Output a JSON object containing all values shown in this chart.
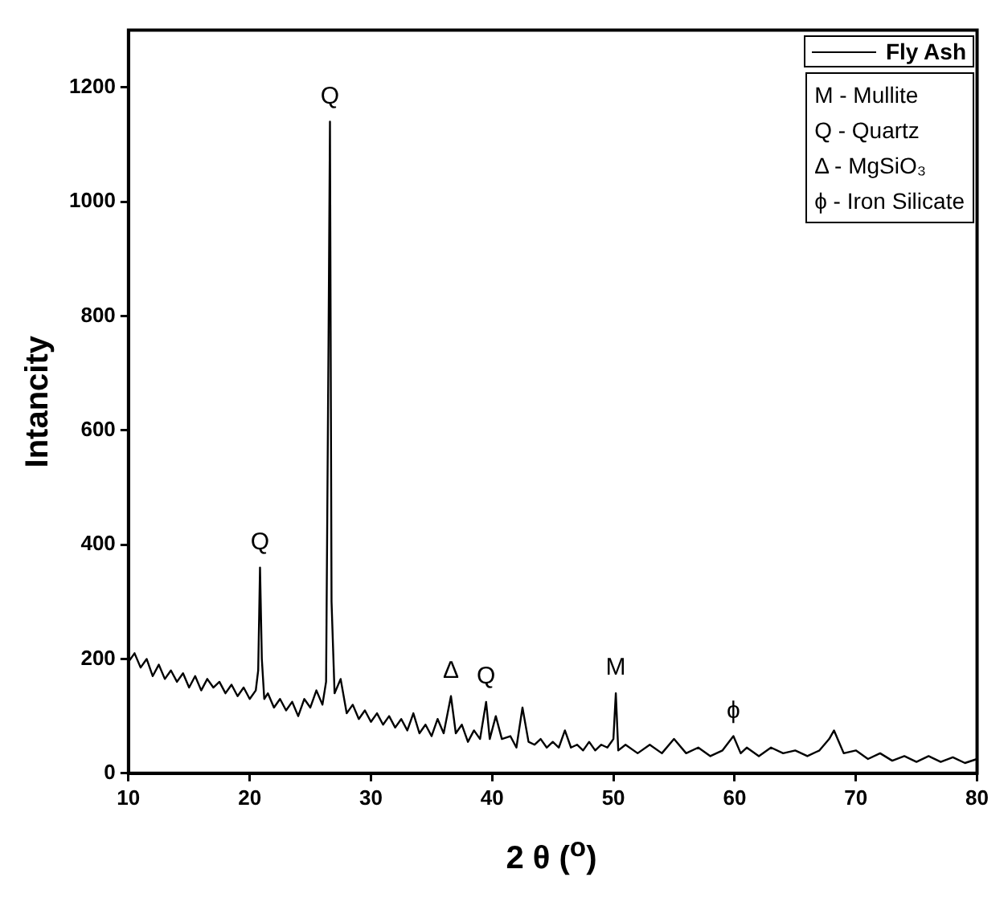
{
  "chart_data": {
    "type": "line",
    "xlabel": "2 θ ($^{o}$)",
    "ylabel": "Intancity",
    "xlim": [
      10,
      80
    ],
    "xticks": [
      10,
      20,
      30,
      40,
      50,
      60,
      70,
      80
    ],
    "ylim": [
      0,
      1300
    ],
    "yticks": [
      0,
      200,
      400,
      600,
      800,
      1000,
      1200
    ],
    "grid": false,
    "legend": "top right",
    "marker": "none",
    "line_style": "solid",
    "annotations": [
      {
        "text": "Q",
        "x": 20.85,
        "y": 360
      },
      {
        "text": "Q",
        "x": 26.62,
        "y": 1140
      },
      {
        "text": "Δ",
        "x": 36.6,
        "y": 135
      },
      {
        "text": "Q",
        "x": 39.5,
        "y": 125
      },
      {
        "text": "M",
        "x": 50.2,
        "y": 140
      },
      {
        "text": "ϕ",
        "x": 59.9,
        "y": 65
      },
      "M - Mullite",
      "Q - Quartz",
      "Δ - MgSiO₃",
      "ϕ - Iron Silicate"
    ],
    "series": [
      {
        "name": "Fly Ash",
        "color": "#000000",
        "x": [
          10,
          10.5,
          11,
          11.5,
          12,
          12.5,
          13,
          13.5,
          14,
          14.5,
          15,
          15.5,
          16,
          16.5,
          17,
          17.5,
          18,
          18.5,
          19,
          19.5,
          20,
          20.5,
          20.7,
          20.85,
          21,
          21.2,
          21.5,
          22,
          22.5,
          23,
          23.5,
          24,
          24.5,
          25,
          25.5,
          26,
          26.3,
          26.5,
          26.62,
          26.75,
          27,
          27.5,
          28,
          28.5,
          29,
          29.5,
          30,
          30.5,
          31,
          31.5,
          32,
          32.5,
          33,
          33.5,
          34,
          34.5,
          35,
          35.5,
          36,
          36.6,
          37,
          37.5,
          38,
          38.5,
          39,
          39.5,
          39.8,
          40.3,
          40.8,
          41.5,
          42,
          42.5,
          43,
          43.5,
          44,
          44.5,
          45,
          45.5,
          46,
          46.5,
          47,
          47.5,
          48,
          48.5,
          49,
          49.5,
          50,
          50.2,
          50.4,
          51,
          52,
          53,
          54,
          55,
          56,
          57,
          58,
          59,
          59.9,
          60.5,
          61,
          62,
          63,
          64,
          65,
          66,
          67,
          67.8,
          68.2,
          68.6,
          69,
          70,
          71,
          72,
          73,
          74,
          75,
          76,
          77,
          78,
          79,
          80
        ],
        "values": [
          195,
          210,
          185,
          200,
          170,
          190,
          165,
          180,
          160,
          175,
          150,
          170,
          145,
          165,
          150,
          160,
          140,
          155,
          135,
          150,
          130,
          145,
          180,
          360,
          200,
          130,
          140,
          115,
          130,
          110,
          125,
          100,
          130,
          115,
          145,
          120,
          160,
          750,
          1140,
          300,
          140,
          165,
          105,
          120,
          95,
          110,
          90,
          105,
          85,
          100,
          80,
          95,
          75,
          105,
          70,
          85,
          65,
          95,
          70,
          135,
          70,
          85,
          55,
          75,
          60,
          125,
          60,
          100,
          60,
          65,
          45,
          115,
          55,
          50,
          60,
          45,
          55,
          45,
          75,
          45,
          50,
          40,
          55,
          40,
          50,
          45,
          60,
          140,
          40,
          50,
          35,
          50,
          35,
          60,
          35,
          45,
          30,
          40,
          65,
          35,
          45,
          30,
          45,
          35,
          40,
          30,
          40,
          60,
          75,
          55,
          35,
          40,
          25,
          35,
          22,
          30,
          20,
          30,
          20,
          28,
          18,
          25
        ]
      }
    ]
  }
}
